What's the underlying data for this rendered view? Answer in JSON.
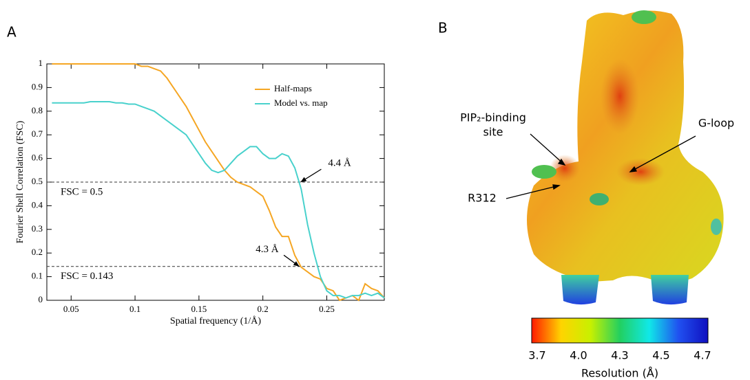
{
  "chart_data": {
    "type": "line",
    "panel_label": "A",
    "x_label": "Spatial frequency (1/Å)",
    "y_label": "Fourier Shell Correlation (FSC)",
    "x": [
      0.035,
      0.04,
      0.045,
      0.05,
      0.055,
      0.06,
      0.065,
      0.07,
      0.075,
      0.08,
      0.085,
      0.09,
      0.095,
      0.1,
      0.105,
      0.11,
      0.115,
      0.12,
      0.125,
      0.13,
      0.135,
      0.14,
      0.145,
      0.15,
      0.155,
      0.16,
      0.165,
      0.17,
      0.175,
      0.18,
      0.185,
      0.19,
      0.195,
      0.2,
      0.205,
      0.21,
      0.215,
      0.22,
      0.225,
      0.23,
      0.235,
      0.24,
      0.245,
      0.25,
      0.255,
      0.26,
      0.265,
      0.27,
      0.275,
      0.28,
      0.285,
      0.29,
      0.295
    ],
    "series": [
      {
        "name": "Half-maps",
        "color": "#f5a623",
        "values": [
          1,
          1,
          1,
          1,
          1,
          1,
          1,
          1,
          1,
          1,
          1,
          1,
          1,
          1,
          0.99,
          0.99,
          0.98,
          0.97,
          0.94,
          0.9,
          0.86,
          0.82,
          0.77,
          0.72,
          0.67,
          0.63,
          0.59,
          0.55,
          0.52,
          0.5,
          0.49,
          0.48,
          0.46,
          0.44,
          0.38,
          0.31,
          0.27,
          0.27,
          0.19,
          0.14,
          0.12,
          0.1,
          0.09,
          0.05,
          0.04,
          0.0,
          0.01,
          0.02,
          0.0,
          0.07,
          0.05,
          0.04,
          0.01
        ]
      },
      {
        "name": "Model vs. map",
        "color": "#48d1cc",
        "values": [
          0.835,
          0.835,
          0.835,
          0.835,
          0.835,
          0.835,
          0.84,
          0.84,
          0.84,
          0.84,
          0.835,
          0.835,
          0.83,
          0.83,
          0.82,
          0.81,
          0.8,
          0.78,
          0.76,
          0.74,
          0.72,
          0.7,
          0.66,
          0.62,
          0.58,
          0.55,
          0.54,
          0.55,
          0.58,
          0.61,
          0.63,
          0.65,
          0.65,
          0.62,
          0.6,
          0.6,
          0.62,
          0.61,
          0.56,
          0.47,
          0.32,
          0.2,
          0.1,
          0.04,
          0.02,
          0.02,
          0.01,
          0.02,
          0.02,
          0.03,
          0.02,
          0.03,
          0.01
        ]
      }
    ],
    "xlim": [
      0.031,
      0.295
    ],
    "ylim": [
      0,
      1
    ],
    "xticks": [
      0.05,
      0.1,
      0.15,
      0.2,
      0.25
    ],
    "yticks": [
      0,
      0.1,
      0.2,
      0.3,
      0.4,
      0.5,
      0.6,
      0.7,
      0.8,
      0.9,
      1
    ],
    "legend": "upper right",
    "hlines": [
      {
        "y": 0.5,
        "label": "FSC = 0.5"
      },
      {
        "y": 0.143,
        "label": "FSC = 0.143"
      }
    ],
    "annotations": [
      {
        "text": "4.4 Å",
        "x": 0.2295,
        "y": 0.5
      },
      {
        "text": "4.3 Å",
        "x": 0.2285,
        "y": 0.143
      }
    ]
  },
  "panel_b": {
    "panel_label": "B",
    "labels": {
      "pip2": [
        "PIP₂-binding",
        "site"
      ],
      "gloop": "G-loop",
      "r312": "R312"
    },
    "colorbar": {
      "colors": [
        "#ff1a00",
        "#ffd400",
        "#c8f000",
        "#22d060",
        "#10e8e8",
        "#2050f0",
        "#1010c0"
      ],
      "ticks": [
        "3.7",
        "4.0",
        "4.3",
        "4.5",
        "4.7"
      ],
      "title": "Resolution (Å)"
    }
  }
}
